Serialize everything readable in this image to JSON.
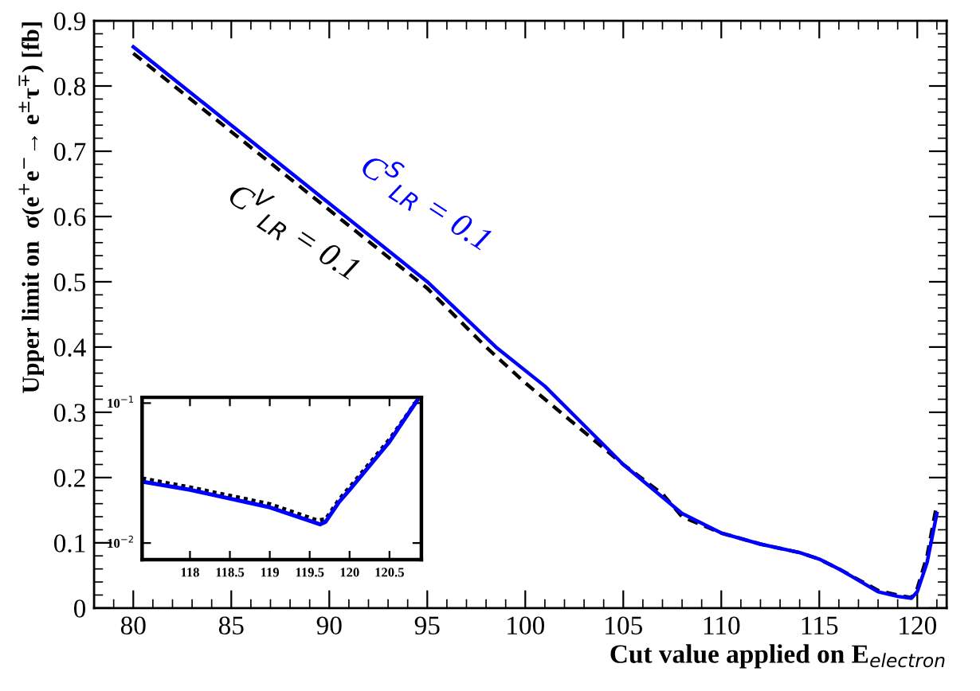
{
  "chart_data": [
    {
      "type": "line",
      "xlabel": "Cut value applied on E$_{electron}$",
      "ylabel": "Upper limit on  σ(e$^{+}$e$^{−}$→ e$^{±}$τ$^{∓}$) [fb]",
      "xlim": [
        78,
        121.5
      ],
      "ylim": [
        0,
        0.9
      ],
      "xticks": [
        80,
        85,
        90,
        95,
        100,
        105,
        110,
        115,
        120
      ],
      "yticks": [
        0,
        0.1,
        0.2,
        0.3,
        0.4,
        0.5,
        0.6,
        0.7,
        0.8,
        0.9
      ],
      "grid": false,
      "series": [
        {
          "color": "#000000",
          "line_style": "dashed",
          "x": [
            80,
            85,
            90,
            95,
            98,
            100,
            103,
            105,
            107,
            108,
            110,
            112,
            114,
            115,
            116,
            118,
            119,
            119.7,
            120,
            120.5,
            121
          ],
          "values": [
            0.85,
            0.73,
            0.61,
            0.49,
            0.4,
            0.345,
            0.27,
            0.22,
            0.175,
            0.14,
            0.115,
            0.098,
            0.085,
            0.075,
            0.06,
            0.027,
            0.02,
            0.016,
            0.03,
            0.08,
            0.16
          ]
        },
        {
          "color": "#0000ff",
          "line_style": "solid",
          "x": [
            80,
            85,
            90,
            95,
            98.5,
            101,
            103,
            105,
            107,
            108,
            110,
            112,
            114,
            115,
            116,
            118,
            119,
            119.7,
            120,
            120.5,
            121
          ],
          "values": [
            0.86,
            0.74,
            0.62,
            0.5,
            0.4,
            0.34,
            0.28,
            0.22,
            0.17,
            0.145,
            0.115,
            0.098,
            0.085,
            0.075,
            0.06,
            0.025,
            0.018,
            0.015,
            0.025,
            0.07,
            0.145
          ]
        }
      ],
      "annotations": [
        "C$^{V}$$_{LR}$ = 0.1",
        "C$^{S}$$_{LR}$ = 0.1"
      ]
    },
    {
      "type": "line",
      "log": "y",
      "xlim": [
        117.4,
        120.9
      ],
      "ylim": [
        0.0076,
        0.11
      ],
      "xticks": [
        118,
        118.5,
        119,
        119.5,
        120,
        120.5
      ],
      "yticks": [
        {
          "value": 0.01,
          "label": "10$^{−2}$"
        },
        {
          "value": 0.1,
          "label": "10$^{−1}$"
        }
      ],
      "grid": false,
      "series": [
        {
          "color": "#000000",
          "line_style": "dotted",
          "x": [
            117.4,
            118,
            119,
            119.6,
            119.7,
            119.87,
            120,
            120.5,
            120.85
          ],
          "values": [
            0.029,
            0.025,
            0.019,
            0.0145,
            0.0148,
            0.0205,
            0.025,
            0.055,
            0.105
          ]
        },
        {
          "color": "#0000ff",
          "line_style": "solid",
          "x": [
            117.4,
            118,
            119,
            119.63,
            119.7,
            119.87,
            120,
            120.5,
            120.85
          ],
          "values": [
            0.0275,
            0.024,
            0.018,
            0.0136,
            0.0142,
            0.0197,
            0.024,
            0.053,
            0.105
          ]
        }
      ]
    }
  ]
}
